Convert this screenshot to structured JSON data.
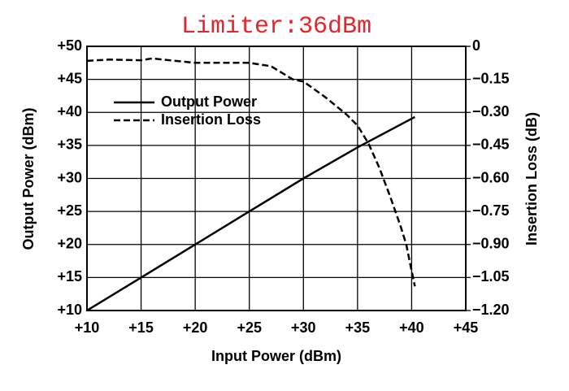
{
  "chart_data": {
    "type": "line",
    "title": "Limiter:36dBm",
    "x_label": "Input Power (dBm)",
    "y_label": "Output Power (dBm)",
    "y2_label": "Insertion Loss (dB)",
    "xlim": [
      10,
      45
    ],
    "xticks": [
      {
        "value": 10,
        "label": "+10"
      },
      {
        "value": 15,
        "label": "+15"
      },
      {
        "value": 20,
        "label": "+20"
      },
      {
        "value": 25,
        "label": "+25"
      },
      {
        "value": 30,
        "label": "+30"
      },
      {
        "value": 35,
        "label": "+35"
      },
      {
        "value": 40,
        "label": "+40"
      },
      {
        "value": 45,
        "label": "+45"
      }
    ],
    "ylim": [
      10,
      50
    ],
    "yticks": [
      {
        "value": 10,
        "label": "+10"
      },
      {
        "value": 15,
        "label": "+15"
      },
      {
        "value": 20,
        "label": "+20"
      },
      {
        "value": 25,
        "label": "+25"
      },
      {
        "value": 30,
        "label": "+30"
      },
      {
        "value": 35,
        "label": "+35"
      },
      {
        "value": 40,
        "label": "+40"
      },
      {
        "value": 45,
        "label": "+45"
      },
      {
        "value": 50,
        "label": "+50"
      }
    ],
    "y2lim": [
      -1.2,
      0
    ],
    "y2ticks": [
      0,
      {
        "value": -0.15,
        "label": "−0.15"
      },
      {
        "value": -0.3,
        "label": "−0.30"
      },
      {
        "value": -0.45,
        "label": "−0.45"
      },
      {
        "value": -0.6,
        "label": "−0.60"
      },
      {
        "value": -0.75,
        "label": "−0.75"
      },
      {
        "value": -0.9,
        "label": "−0.90"
      },
      {
        "value": -1.05,
        "label": "−1.05"
      },
      {
        "value": -1.2,
        "label": "−1.20"
      }
    ],
    "grid": true,
    "legend": "upper left",
    "series": [
      {
        "name": "Output Power",
        "color": "#000000",
        "line_style": "solid",
        "x": [
          10,
          15,
          20,
          25,
          30,
          35,
          40.3
        ],
        "values": [
          10,
          15,
          20,
          25,
          30,
          34.7,
          39.3
        ]
      },
      {
        "name": "Insertion Loss",
        "color": "#000000",
        "line_style": "dashed",
        "axis": "y2",
        "x": [
          10,
          12,
          15,
          16,
          20,
          25,
          27,
          29,
          30,
          32,
          34,
          35,
          36,
          37,
          38,
          39,
          39.5,
          40,
          40.3
        ],
        "values": [
          -0.066,
          -0.06,
          -0.063,
          -0.055,
          -0.075,
          -0.075,
          -0.09,
          -0.15,
          -0.16,
          -0.23,
          -0.31,
          -0.36,
          -0.44,
          -0.55,
          -0.68,
          -0.82,
          -0.9,
          -1.02,
          -1.09
        ]
      }
    ]
  }
}
